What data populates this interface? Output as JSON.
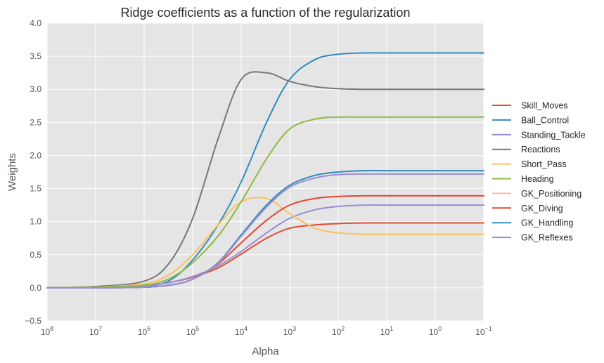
{
  "chart_data": {
    "type": "line",
    "title": "Ridge coefficients as a function of the regularization",
    "xlabel": "Alpha",
    "ylabel": "Weights",
    "x_scale": "log",
    "x_reversed": true,
    "xlim": [
      100000000,
      0.1
    ],
    "ylim": [
      -0.5,
      4.0
    ],
    "grid": true,
    "legend_position": "right",
    "x_ticks": [
      {
        "value": 100000000,
        "base": "10",
        "exp": "8"
      },
      {
        "value": 10000000,
        "base": "10",
        "exp": "7"
      },
      {
        "value": 1000000,
        "base": "10",
        "exp": "6"
      },
      {
        "value": 100000,
        "base": "10",
        "exp": "5"
      },
      {
        "value": 10000,
        "base": "10",
        "exp": "4"
      },
      {
        "value": 1000,
        "base": "10",
        "exp": "3"
      },
      {
        "value": 100,
        "base": "10",
        "exp": "2"
      },
      {
        "value": 10,
        "base": "10",
        "exp": "1"
      },
      {
        "value": 1,
        "base": "10",
        "exp": "0"
      },
      {
        "value": 0.1,
        "base": "10",
        "exp": "−1"
      }
    ],
    "y_ticks": [
      {
        "value": 4.0,
        "label": "4.0"
      },
      {
        "value": 3.5,
        "label": "3.5"
      },
      {
        "value": 3.0,
        "label": "3.0"
      },
      {
        "value": 2.5,
        "label": "2.5"
      },
      {
        "value": 2.0,
        "label": "2.0"
      },
      {
        "value": 1.5,
        "label": "1.5"
      },
      {
        "value": 1.0,
        "label": "1.0"
      },
      {
        "value": 0.5,
        "label": "0.5"
      },
      {
        "value": 0.0,
        "label": "0.0"
      },
      {
        "value": -0.5,
        "label": "−0.5"
      }
    ],
    "x": [
      100000000,
      10000000,
      1000000,
      300000,
      100000,
      30000,
      10000,
      3000,
      1000,
      300,
      100,
      30,
      10,
      1,
      0.1
    ],
    "series": [
      {
        "name": "Skill_Moves",
        "color": "#E24A33",
        "values": [
          0.0,
          0.01,
          0.03,
          0.08,
          0.16,
          0.3,
          0.51,
          0.75,
          0.9,
          0.95,
          0.97,
          0.98,
          0.98,
          0.98,
          0.98
        ]
      },
      {
        "name": "Ball_Control",
        "color": "#348ABD",
        "values": [
          0.0,
          0.0,
          0.02,
          0.11,
          0.42,
          0.95,
          1.6,
          2.5,
          3.15,
          3.45,
          3.53,
          3.55,
          3.55,
          3.55,
          3.55
        ]
      },
      {
        "name": "Standing_Tackle",
        "color": "#988ED5",
        "values": [
          0.0,
          0.01,
          0.03,
          0.08,
          0.17,
          0.33,
          0.55,
          0.83,
          1.05,
          1.18,
          1.23,
          1.25,
          1.25,
          1.25,
          1.25
        ]
      },
      {
        "name": "Reactions",
        "color": "#777777",
        "values": [
          0.0,
          0.02,
          0.1,
          0.38,
          1.05,
          2.25,
          3.15,
          3.25,
          3.12,
          3.04,
          3.01,
          3.0,
          3.0,
          3.0,
          3.0
        ]
      },
      {
        "name": "Short_Pass",
        "color": "#FBC15E",
        "values": [
          0.0,
          0.01,
          0.06,
          0.2,
          0.5,
          0.95,
          1.3,
          1.35,
          1.12,
          0.9,
          0.83,
          0.81,
          0.81,
          0.81,
          0.81
        ]
      },
      {
        "name": "Heading",
        "color": "#8EBA42",
        "values": [
          0.0,
          0.01,
          0.04,
          0.14,
          0.38,
          0.78,
          1.3,
          1.95,
          2.4,
          2.55,
          2.58,
          2.58,
          2.58,
          2.58,
          2.58
        ]
      },
      {
        "name": "GK_Positioning",
        "color": "#FFB5B8",
        "values": [
          0.0,
          0.0,
          0.01,
          0.04,
          0.13,
          0.36,
          0.68,
          1.02,
          1.25,
          1.35,
          1.38,
          1.39,
          1.39,
          1.39,
          1.39
        ]
      },
      {
        "name": "GK_Diving",
        "color": "#E24A33",
        "values": [
          0.0,
          0.0,
          0.01,
          0.04,
          0.13,
          0.36,
          0.68,
          1.02,
          1.25,
          1.35,
          1.38,
          1.39,
          1.39,
          1.39,
          1.39
        ]
      },
      {
        "name": "GK_Handling",
        "color": "#348ABD",
        "values": [
          0.0,
          0.0,
          0.01,
          0.04,
          0.13,
          0.38,
          0.8,
          1.25,
          1.55,
          1.7,
          1.75,
          1.77,
          1.77,
          1.77,
          1.77
        ]
      },
      {
        "name": "GK_Reflexes",
        "color": "#988ED5",
        "values": [
          0.0,
          0.0,
          0.01,
          0.04,
          0.13,
          0.37,
          0.78,
          1.22,
          1.52,
          1.66,
          1.71,
          1.72,
          1.72,
          1.72,
          1.72
        ]
      }
    ]
  }
}
